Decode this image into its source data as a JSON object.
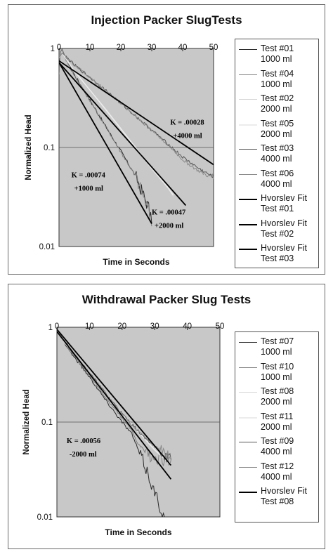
{
  "chart_data": [
    {
      "type": "line",
      "title": "Injection Packer SlugTests",
      "xlabel": "Time in Seconds",
      "ylabel": "Normalized Head",
      "xlim": [
        0,
        50
      ],
      "ylim": [
        0.01,
        1
      ],
      "yscale": "log",
      "grid": "y-major",
      "legend_position": "right",
      "background": "#c8c8c8",
      "x_ticks": [
        "0",
        "10",
        "20",
        "30",
        "40",
        "50"
      ],
      "y_ticks": [
        "1",
        "0.1",
        "0.01"
      ],
      "annotations": [
        {
          "line1": "K = .00028",
          "line2": "+4000 ml",
          "x": 36,
          "y": 0.17
        },
        {
          "line1": "K = .00074",
          "line2": "+1000 ml",
          "x": 4,
          "y": 0.05
        },
        {
          "line1": "K = .00047",
          "line2": "+2000 ml",
          "x": 30,
          "y": 0.021
        }
      ],
      "series": [
        {
          "label_line1": "Test #01",
          "label_line2": "1000 ml",
          "color": "#2a2a2a",
          "width": 1,
          "noisy": true,
          "points": [
            [
              0,
              0.55
            ],
            [
              0.4,
              0.92
            ],
            [
              1,
              0.98
            ],
            [
              2,
              0.82
            ],
            [
              5,
              0.54
            ],
            [
              10,
              0.3
            ],
            [
              15,
              0.165
            ],
            [
              20,
              0.092
            ],
            [
              25,
              0.05
            ],
            [
              27,
              0.035
            ],
            [
              29,
              0.025
            ],
            [
              30,
              0.017
            ]
          ]
        },
        {
          "label_line1": "Test #04",
          "label_line2": "1000 ml",
          "color": "#808080",
          "width": 1,
          "noisy": true,
          "points": [
            [
              0,
              0.55
            ],
            [
              0.4,
              0.92
            ],
            [
              1,
              0.97
            ],
            [
              2,
              0.8
            ],
            [
              5,
              0.53
            ],
            [
              10,
              0.3
            ],
            [
              15,
              0.165
            ],
            [
              20,
              0.09
            ],
            [
              25,
              0.05
            ],
            [
              27,
              0.034
            ],
            [
              29,
              0.023
            ],
            [
              30,
              0.016
            ]
          ]
        },
        {
          "label_line1": "Test #02",
          "label_line2": "2000 ml",
          "color": "#d6d6d6",
          "width": 1,
          "noisy": false,
          "points": [
            [
              0,
              0.8
            ],
            [
              1,
              0.9
            ],
            [
              5,
              0.58
            ],
            [
              10,
              0.38
            ],
            [
              15,
              0.24
            ],
            [
              20,
              0.15
            ],
            [
              25,
              0.095
            ],
            [
              30,
              0.06
            ],
            [
              35,
              0.04
            ],
            [
              37,
              0.032
            ]
          ]
        },
        {
          "label_line1": "Test #05",
          "label_line2": "2000 ml",
          "color": "#ececec",
          "width": 1.5,
          "noisy": false,
          "points": [
            [
              0,
              0.8
            ],
            [
              1,
              0.9
            ],
            [
              5,
              0.59
            ],
            [
              10,
              0.38
            ],
            [
              15,
              0.245
            ],
            [
              20,
              0.155
            ],
            [
              25,
              0.098
            ],
            [
              30,
              0.062
            ],
            [
              35,
              0.04
            ],
            [
              37,
              0.033
            ]
          ]
        },
        {
          "label_line1": "Test #03",
          "label_line2": "4000 ml",
          "color": "#555555",
          "width": 1,
          "noisy": true,
          "points": [
            [
              0,
              0.8
            ],
            [
              1,
              0.9
            ],
            [
              5,
              0.68
            ],
            [
              10,
              0.51
            ],
            [
              15,
              0.38
            ],
            [
              20,
              0.28
            ],
            [
              25,
              0.205
            ],
            [
              30,
              0.15
            ],
            [
              35,
              0.11
            ],
            [
              40,
              0.08
            ],
            [
              45,
              0.062
            ],
            [
              50,
              0.05
            ]
          ]
        },
        {
          "label_line1": "Test #06",
          "label_line2": "4000 ml",
          "color": "#8a8a8a",
          "width": 1,
          "noisy": true,
          "points": [
            [
              0,
              0.8
            ],
            [
              1,
              0.9
            ],
            [
              5,
              0.68
            ],
            [
              10,
              0.51
            ],
            [
              15,
              0.38
            ],
            [
              20,
              0.28
            ],
            [
              25,
              0.205
            ],
            [
              30,
              0.15
            ],
            [
              35,
              0.108
            ],
            [
              40,
              0.075
            ],
            [
              45,
              0.058
            ],
            [
              50,
              0.048
            ]
          ]
        },
        {
          "label_line1": "Hvorslev Fit",
          "label_line2": "Test #01",
          "color": "#000000",
          "width": 1.8,
          "noisy": false,
          "points": [
            [
              0,
              0.72
            ],
            [
              30,
              0.017
            ]
          ]
        },
        {
          "label_line1": "Hvorslev Fit",
          "label_line2": "Test #02",
          "color": "#000000",
          "width": 1.8,
          "noisy": false,
          "points": [
            [
              0,
              0.72
            ],
            [
              41,
              0.026
            ]
          ]
        },
        {
          "label_line1": "Hvorslev Fit",
          "label_line2": "Test #03",
          "color": "#000000",
          "width": 1.8,
          "noisy": false,
          "points": [
            [
              0,
              0.75
            ],
            [
              50,
              0.067
            ]
          ]
        }
      ]
    },
    {
      "type": "line",
      "title": "Withdrawal Packer Slug Tests",
      "xlabel": "Time in Seconds",
      "ylabel": "Normalized Head",
      "xlim": [
        0,
        50
      ],
      "ylim": [
        0.01,
        1
      ],
      "yscale": "log",
      "grid": "y-major",
      "legend_position": "right",
      "background": "#c8c8c8",
      "x_ticks": [
        "0",
        "10",
        "20",
        "30",
        "40",
        "50"
      ],
      "y_ticks": [
        "1",
        "0.1",
        "0.01"
      ],
      "annotations": [
        {
          "line1": "K = .00056",
          "line2": "-2000 ml",
          "x": 3,
          "y": 0.06
        }
      ],
      "series": [
        {
          "label_line1": "Test #07",
          "label_line2": "1000 ml",
          "color": "#2a2a2a",
          "width": 1,
          "noisy": true,
          "points": [
            [
              0,
              0.95
            ],
            [
              2,
              0.72
            ],
            [
              5,
              0.5
            ],
            [
              10,
              0.3
            ],
            [
              15,
              0.17
            ],
            [
              20,
              0.1
            ],
            [
              23,
              0.075
            ],
            [
              25,
              0.05
            ],
            [
              27,
              0.035
            ],
            [
              30,
              0.018
            ],
            [
              33,
              0.01
            ]
          ]
        },
        {
          "label_line1": "Test #10",
          "label_line2": "1000 ml",
          "color": "#808080",
          "width": 1,
          "noisy": true,
          "points": [
            [
              0,
              0.95
            ],
            [
              2,
              0.72
            ],
            [
              5,
              0.51
            ],
            [
              10,
              0.31
            ],
            [
              15,
              0.18
            ],
            [
              20,
              0.11
            ],
            [
              23,
              0.08
            ],
            [
              25,
              0.058
            ],
            [
              28,
              0.045
            ],
            [
              31,
              0.042
            ],
            [
              35,
              0.04
            ]
          ]
        },
        {
          "label_line1": "Test #08",
          "label_line2": "2000 ml",
          "color": "#d6d6d6",
          "width": 1,
          "noisy": false,
          "points": [
            [
              0,
              0.95
            ],
            [
              2,
              0.72
            ],
            [
              5,
              0.52
            ],
            [
              10,
              0.33
            ],
            [
              15,
              0.2
            ],
            [
              20,
              0.12
            ],
            [
              25,
              0.078
            ],
            [
              30,
              0.05
            ],
            [
              35,
              0.035
            ]
          ]
        },
        {
          "label_line1": "Test #11",
          "label_line2": "2000 ml",
          "color": "#ececec",
          "width": 1.5,
          "noisy": false,
          "points": [
            [
              0,
              0.95
            ],
            [
              2,
              0.72
            ],
            [
              5,
              0.52
            ],
            [
              10,
              0.33
            ],
            [
              15,
              0.2
            ],
            [
              20,
              0.12
            ],
            [
              25,
              0.079
            ],
            [
              30,
              0.051
            ],
            [
              35,
              0.036
            ]
          ]
        },
        {
          "label_line1": "Test #09",
          "label_line2": "4000 ml",
          "color": "#555555",
          "width": 1,
          "noisy": true,
          "points": [
            [
              0,
              0.95
            ],
            [
              2,
              0.74
            ],
            [
              5,
              0.53
            ],
            [
              10,
              0.33
            ],
            [
              15,
              0.2
            ],
            [
              20,
              0.122
            ],
            [
              25,
              0.08
            ],
            [
              30,
              0.055
            ],
            [
              35,
              0.04
            ]
          ]
        },
        {
          "label_line1": "Test #12",
          "label_line2": "4000 ml",
          "color": "#8a8a8a",
          "width": 1,
          "noisy": true,
          "points": [
            [
              0,
              0.95
            ],
            [
              2,
              0.74
            ],
            [
              5,
              0.53
            ],
            [
              10,
              0.33
            ],
            [
              15,
              0.2
            ],
            [
              20,
              0.122
            ],
            [
              25,
              0.08
            ],
            [
              30,
              0.056
            ],
            [
              35,
              0.042
            ]
          ]
        },
        {
          "label_line1": "Hvorslev Fit",
          "label_line2": "Test #08",
          "color": "#000000",
          "width": 1.8,
          "noisy": false,
          "points": [
            [
              0,
              0.95
            ],
            [
              35,
              0.035
            ]
          ]
        },
        {
          "label_line1": "",
          "label_line2": "",
          "color": "#000000",
          "width": 1.8,
          "noisy": false,
          "points": [
            [
              0,
              0.9
            ],
            [
              35,
              0.025
            ]
          ]
        }
      ]
    }
  ]
}
